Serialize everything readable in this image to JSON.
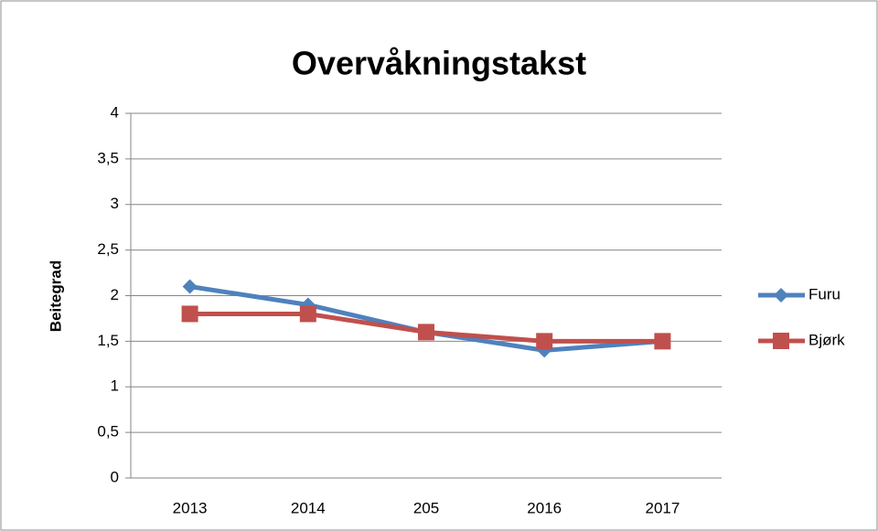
{
  "chart_data": {
    "type": "line",
    "title": "Overvåkningstakst",
    "y_label": "Beitegrad",
    "categories": [
      "2013",
      "2014",
      "205",
      "2016",
      "2017"
    ],
    "series": [
      {
        "name": "Furu",
        "color": "#4f81bd",
        "marker": "diamond",
        "values": [
          2.1,
          1.9,
          1.6,
          1.4,
          1.5
        ]
      },
      {
        "name": "Bjørk",
        "color": "#c0504d",
        "marker": "square",
        "values": [
          1.8,
          1.8,
          1.6,
          1.5,
          1.5
        ]
      }
    ],
    "ylim": [
      0,
      4
    ],
    "yticks": [
      0,
      {
        "value": 0.5,
        "label": "0,5"
      },
      1,
      {
        "value": 1.5,
        "label": "1,5"
      },
      2,
      {
        "value": 2.5,
        "label": "2,5"
      },
      3,
      {
        "value": 3.5,
        "label": "3,5"
      },
      4
    ],
    "grid": true,
    "legend": "right"
  }
}
